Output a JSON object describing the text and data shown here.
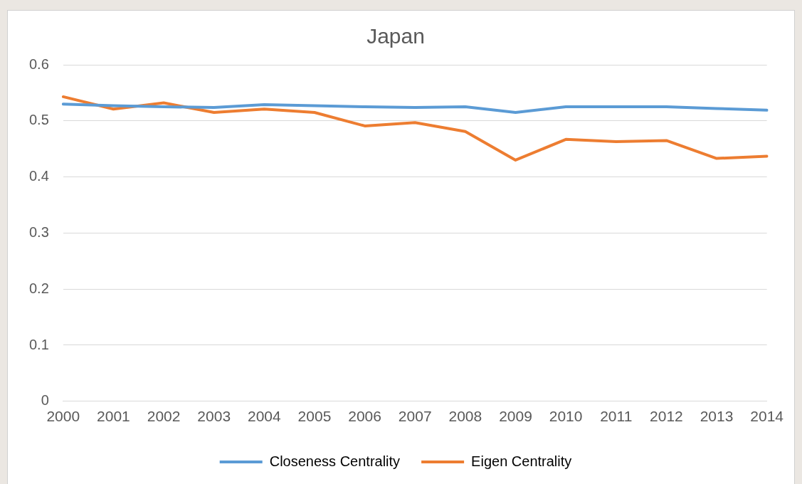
{
  "chart_data": {
    "type": "line",
    "title": "Japan",
    "categories": [
      "2000",
      "2001",
      "2002",
      "2003",
      "2004",
      "2005",
      "2006",
      "2007",
      "2008",
      "2009",
      "2010",
      "2011",
      "2012",
      "2013",
      "2014"
    ],
    "series": [
      {
        "name": "Closeness Centrality",
        "color": "#5b9bd5",
        "values": [
          0.53,
          0.527,
          0.525,
          0.524,
          0.529,
          0.527,
          0.525,
          0.524,
          0.525,
          0.515,
          0.525,
          0.525,
          0.525,
          0.522,
          0.519
        ]
      },
      {
        "name": "Eigen Centrality",
        "color": "#ed7d31",
        "values": [
          0.543,
          0.521,
          0.532,
          0.515,
          0.521,
          0.515,
          0.491,
          0.497,
          0.481,
          0.43,
          0.467,
          0.463,
          0.465,
          0.433,
          0.437
        ]
      }
    ],
    "ylim": [
      0,
      0.6
    ],
    "yticks": [
      0,
      0.1,
      0.2,
      0.3,
      0.4,
      0.5,
      0.6
    ],
    "grid": "y",
    "legend": "bottom",
    "marker": "none",
    "line_style": "solid"
  }
}
